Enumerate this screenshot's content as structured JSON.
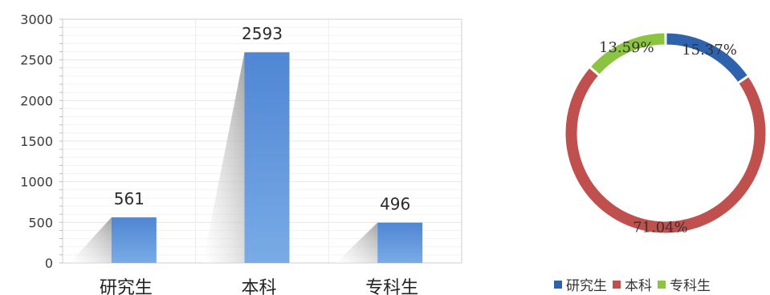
{
  "chart_data": [
    {
      "type": "bar",
      "categories": [
        "研究生",
        "本科",
        "专科生"
      ],
      "values": [
        561,
        2593,
        496
      ],
      "value_labels": [
        "561",
        "2593",
        "496"
      ],
      "ylim": [
        0,
        3000
      ],
      "y_ticks": [
        "0",
        "500",
        "1000",
        "1500",
        "2000",
        "2500",
        "3000"
      ],
      "grid": true,
      "bar_color": "#5b93d8"
    },
    {
      "type": "pie",
      "labels": [
        "研究生",
        "本科",
        "专科生"
      ],
      "values": [
        15.37,
        71.04,
        13.59
      ],
      "value_labels": [
        "15.37%",
        "71.04%",
        "13.59%"
      ],
      "colors": [
        "#2e62ad",
        "#c0504d",
        "#8bc540"
      ],
      "legend_position": "bottom"
    }
  ]
}
